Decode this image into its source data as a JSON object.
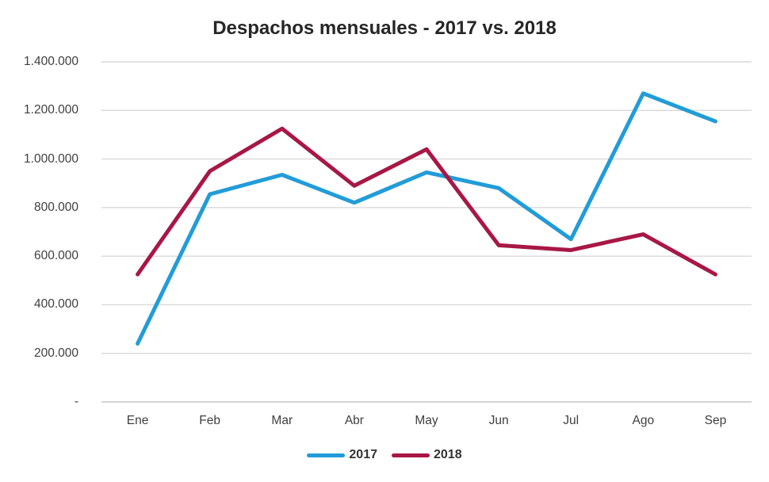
{
  "title": "Despachos mensuales - 2017 vs. 2018",
  "colors": {
    "background": "#ffffff",
    "title_text": "#262626",
    "tick_text": "#3f3f3f",
    "gridline": "#d9d9d9",
    "axis_line": "#c6c6c6",
    "series_2017": "#229cd8",
    "series_2018": "#a81745"
  },
  "chart_data": {
    "type": "line",
    "title": "Despachos mensuales - 2017 vs. 2018",
    "categories": [
      "Ene",
      "Feb",
      "Mar",
      "Abr",
      "May",
      "Jun",
      "Jul",
      "Ago",
      "Sep"
    ],
    "series": [
      {
        "name": "2017",
        "color": "#229cd8",
        "values": [
          240000,
          855000,
          935000,
          820000,
          945000,
          880000,
          670000,
          1270000,
          1155000
        ]
      },
      {
        "name": "2018",
        "color": "#a81745",
        "values": [
          525000,
          950000,
          1125000,
          890000,
          1040000,
          645000,
          625000,
          690000,
          525000
        ]
      }
    ],
    "xlabel": "",
    "ylabel": "",
    "ylim": [
      0,
      1400000
    ],
    "ytick_step": 200000,
    "ytick_labels": [
      "-",
      "200.000",
      "400.000",
      "600.000",
      "800.000",
      "1.000.000",
      "1.200.000",
      "1.400.000"
    ],
    "grid": true,
    "legend_position": "bottom"
  },
  "legend": {
    "items": [
      {
        "label": "2017",
        "color": "#229cd8"
      },
      {
        "label": "2018",
        "color": "#a81745"
      }
    ]
  }
}
